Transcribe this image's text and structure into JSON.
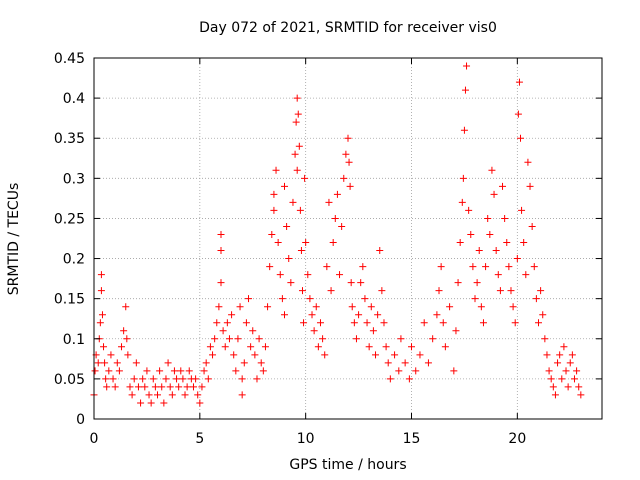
{
  "chart_data": {
    "type": "scatter",
    "title": "Day 072 of 2021, SRMTID for receiver vis0",
    "xlabel": "GPS time / hours",
    "ylabel": "SRMTID / TECUs",
    "xlim": [
      0,
      24
    ],
    "ylim": [
      0,
      0.45
    ],
    "grid": true,
    "marker": "+",
    "color": "#ff0000",
    "x_ticks": [
      0,
      5,
      10,
      15,
      20
    ],
    "x_tick_labels": [
      "0",
      "5",
      "10",
      "15",
      "20"
    ],
    "y_ticks": [
      0,
      0.05,
      0.1,
      0.15,
      0.2,
      0.25,
      0.3,
      0.35,
      0.4,
      0.45
    ],
    "y_tick_labels": [
      "0",
      "0.05",
      "0.1",
      "0.15",
      "0.2",
      "0.25",
      "0.3",
      "0.35",
      "0.4",
      "0.45"
    ],
    "series": [
      {
        "name": "SRMTID",
        "points": [
          [
            0.0,
            0.03
          ],
          [
            0.05,
            0.06
          ],
          [
            0.1,
            0.08
          ],
          [
            0.2,
            0.07
          ],
          [
            0.25,
            0.1
          ],
          [
            0.3,
            0.12
          ],
          [
            0.35,
            0.16
          ],
          [
            0.35,
            0.18
          ],
          [
            0.4,
            0.13
          ],
          [
            0.45,
            0.09
          ],
          [
            0.5,
            0.07
          ],
          [
            0.55,
            0.05
          ],
          [
            0.6,
            0.04
          ],
          [
            0.7,
            0.06
          ],
          [
            0.8,
            0.08
          ],
          [
            0.9,
            0.05
          ],
          [
            1.0,
            0.04
          ],
          [
            1.1,
            0.07
          ],
          [
            1.2,
            0.06
          ],
          [
            1.3,
            0.09
          ],
          [
            1.4,
            0.11
          ],
          [
            1.5,
            0.14
          ],
          [
            1.55,
            0.1
          ],
          [
            1.6,
            0.08
          ],
          [
            1.7,
            0.04
          ],
          [
            1.8,
            0.03
          ],
          [
            1.9,
            0.05
          ],
          [
            2.0,
            0.07
          ],
          [
            2.1,
            0.04
          ],
          [
            2.2,
            0.02
          ],
          [
            2.3,
            0.05
          ],
          [
            2.4,
            0.04
          ],
          [
            2.5,
            0.06
          ],
          [
            2.6,
            0.03
          ],
          [
            2.7,
            0.02
          ],
          [
            2.8,
            0.05
          ],
          [
            2.9,
            0.04
          ],
          [
            3.0,
            0.03
          ],
          [
            3.1,
            0.06
          ],
          [
            3.2,
            0.04
          ],
          [
            3.3,
            0.02
          ],
          [
            3.4,
            0.05
          ],
          [
            3.5,
            0.07
          ],
          [
            3.6,
            0.04
          ],
          [
            3.7,
            0.03
          ],
          [
            3.8,
            0.06
          ],
          [
            3.9,
            0.05
          ],
          [
            4.0,
            0.04
          ],
          [
            4.1,
            0.06
          ],
          [
            4.2,
            0.05
          ],
          [
            4.3,
            0.03
          ],
          [
            4.4,
            0.04
          ],
          [
            4.5,
            0.06
          ],
          [
            4.6,
            0.05
          ],
          [
            4.7,
            0.04
          ],
          [
            4.8,
            0.05
          ],
          [
            4.9,
            0.03
          ],
          [
            5.0,
            0.02
          ],
          [
            5.1,
            0.04
          ],
          [
            5.2,
            0.06
          ],
          [
            5.3,
            0.07
          ],
          [
            5.4,
            0.05
          ],
          [
            5.5,
            0.09
          ],
          [
            5.6,
            0.08
          ],
          [
            5.7,
            0.1
          ],
          [
            5.8,
            0.12
          ],
          [
            5.9,
            0.14
          ],
          [
            6.0,
            0.17
          ],
          [
            6.0,
            0.21
          ],
          [
            6.0,
            0.23
          ],
          [
            6.1,
            0.11
          ],
          [
            6.2,
            0.09
          ],
          [
            6.3,
            0.12
          ],
          [
            6.4,
            0.1
          ],
          [
            6.5,
            0.13
          ],
          [
            6.6,
            0.08
          ],
          [
            6.7,
            0.06
          ],
          [
            6.8,
            0.1
          ],
          [
            6.9,
            0.14
          ],
          [
            7.0,
            0.05
          ],
          [
            7.0,
            0.03
          ],
          [
            7.1,
            0.07
          ],
          [
            7.2,
            0.12
          ],
          [
            7.3,
            0.15
          ],
          [
            7.4,
            0.09
          ],
          [
            7.5,
            0.11
          ],
          [
            7.6,
            0.08
          ],
          [
            7.7,
            0.05
          ],
          [
            7.8,
            0.1
          ],
          [
            7.9,
            0.07
          ],
          [
            8.0,
            0.06
          ],
          [
            8.1,
            0.09
          ],
          [
            8.2,
            0.14
          ],
          [
            8.3,
            0.19
          ],
          [
            8.4,
            0.23
          ],
          [
            8.5,
            0.26
          ],
          [
            8.5,
            0.28
          ],
          [
            8.6,
            0.31
          ],
          [
            8.7,
            0.22
          ],
          [
            8.8,
            0.18
          ],
          [
            8.9,
            0.15
          ],
          [
            9.0,
            0.13
          ],
          [
            9.0,
            0.29
          ],
          [
            9.1,
            0.24
          ],
          [
            9.2,
            0.2
          ],
          [
            9.3,
            0.17
          ],
          [
            9.4,
            0.27
          ],
          [
            9.5,
            0.33
          ],
          [
            9.55,
            0.37
          ],
          [
            9.6,
            0.4
          ],
          [
            9.6,
            0.31
          ],
          [
            9.65,
            0.38
          ],
          [
            9.7,
            0.34
          ],
          [
            9.75,
            0.26
          ],
          [
            9.8,
            0.21
          ],
          [
            9.85,
            0.16
          ],
          [
            9.9,
            0.12
          ],
          [
            9.95,
            0.3
          ],
          [
            10.0,
            0.22
          ],
          [
            10.1,
            0.18
          ],
          [
            10.2,
            0.15
          ],
          [
            10.3,
            0.13
          ],
          [
            10.4,
            0.11
          ],
          [
            10.5,
            0.14
          ],
          [
            10.6,
            0.09
          ],
          [
            10.7,
            0.12
          ],
          [
            10.8,
            0.1
          ],
          [
            10.9,
            0.08
          ],
          [
            11.0,
            0.19
          ],
          [
            11.1,
            0.27
          ],
          [
            11.2,
            0.16
          ],
          [
            11.3,
            0.22
          ],
          [
            11.4,
            0.25
          ],
          [
            11.5,
            0.28
          ],
          [
            11.6,
            0.18
          ],
          [
            11.7,
            0.24
          ],
          [
            11.8,
            0.3
          ],
          [
            11.9,
            0.33
          ],
          [
            12.0,
            0.35
          ],
          [
            12.05,
            0.32
          ],
          [
            12.1,
            0.29
          ],
          [
            12.15,
            0.17
          ],
          [
            12.2,
            0.14
          ],
          [
            12.3,
            0.12
          ],
          [
            12.4,
            0.1
          ],
          [
            12.5,
            0.13
          ],
          [
            12.6,
            0.17
          ],
          [
            12.7,
            0.19
          ],
          [
            12.8,
            0.15
          ],
          [
            12.9,
            0.12
          ],
          [
            13.0,
            0.09
          ],
          [
            13.1,
            0.14
          ],
          [
            13.2,
            0.11
          ],
          [
            13.3,
            0.08
          ],
          [
            13.4,
            0.13
          ],
          [
            13.5,
            0.21
          ],
          [
            13.6,
            0.16
          ],
          [
            13.7,
            0.12
          ],
          [
            13.8,
            0.09
          ],
          [
            13.9,
            0.07
          ],
          [
            14.0,
            0.05
          ],
          [
            14.2,
            0.08
          ],
          [
            14.4,
            0.06
          ],
          [
            14.5,
            0.1
          ],
          [
            14.7,
            0.07
          ],
          [
            14.9,
            0.05
          ],
          [
            15.0,
            0.09
          ],
          [
            15.2,
            0.06
          ],
          [
            15.4,
            0.08
          ],
          [
            15.6,
            0.12
          ],
          [
            15.8,
            0.07
          ],
          [
            16.0,
            0.1
          ],
          [
            16.2,
            0.13
          ],
          [
            16.3,
            0.16
          ],
          [
            16.4,
            0.19
          ],
          [
            16.5,
            0.12
          ],
          [
            16.6,
            0.09
          ],
          [
            16.8,
            0.14
          ],
          [
            17.0,
            0.06
          ],
          [
            17.1,
            0.11
          ],
          [
            17.2,
            0.17
          ],
          [
            17.3,
            0.22
          ],
          [
            17.4,
            0.27
          ],
          [
            17.45,
            0.3
          ],
          [
            17.5,
            0.36
          ],
          [
            17.55,
            0.41
          ],
          [
            17.6,
            0.44
          ],
          [
            17.7,
            0.26
          ],
          [
            17.8,
            0.23
          ],
          [
            17.9,
            0.19
          ],
          [
            18.0,
            0.15
          ],
          [
            18.1,
            0.17
          ],
          [
            18.2,
            0.21
          ],
          [
            18.3,
            0.14
          ],
          [
            18.4,
            0.12
          ],
          [
            18.5,
            0.19
          ],
          [
            18.6,
            0.25
          ],
          [
            18.7,
            0.23
          ],
          [
            18.8,
            0.31
          ],
          [
            18.9,
            0.28
          ],
          [
            19.0,
            0.21
          ],
          [
            19.1,
            0.18
          ],
          [
            19.2,
            0.16
          ],
          [
            19.3,
            0.29
          ],
          [
            19.4,
            0.25
          ],
          [
            19.5,
            0.22
          ],
          [
            19.6,
            0.19
          ],
          [
            19.7,
            0.16
          ],
          [
            19.8,
            0.14
          ],
          [
            19.9,
            0.12
          ],
          [
            20.0,
            0.2
          ],
          [
            20.05,
            0.38
          ],
          [
            20.1,
            0.42
          ],
          [
            20.15,
            0.35
          ],
          [
            20.2,
            0.26
          ],
          [
            20.3,
            0.22
          ],
          [
            20.4,
            0.18
          ],
          [
            20.5,
            0.32
          ],
          [
            20.6,
            0.29
          ],
          [
            20.7,
            0.24
          ],
          [
            20.8,
            0.19
          ],
          [
            20.9,
            0.15
          ],
          [
            21.0,
            0.12
          ],
          [
            21.1,
            0.16
          ],
          [
            21.2,
            0.13
          ],
          [
            21.3,
            0.1
          ],
          [
            21.4,
            0.08
          ],
          [
            21.5,
            0.06
          ],
          [
            21.6,
            0.05
          ],
          [
            21.7,
            0.04
          ],
          [
            21.8,
            0.03
          ],
          [
            21.9,
            0.07
          ],
          [
            22.0,
            0.08
          ],
          [
            22.1,
            0.05
          ],
          [
            22.2,
            0.09
          ],
          [
            22.3,
            0.06
          ],
          [
            22.4,
            0.04
          ],
          [
            22.5,
            0.07
          ],
          [
            22.6,
            0.08
          ],
          [
            22.7,
            0.05
          ],
          [
            22.8,
            0.06
          ],
          [
            22.9,
            0.04
          ],
          [
            23.0,
            0.03
          ]
        ]
      }
    ]
  }
}
